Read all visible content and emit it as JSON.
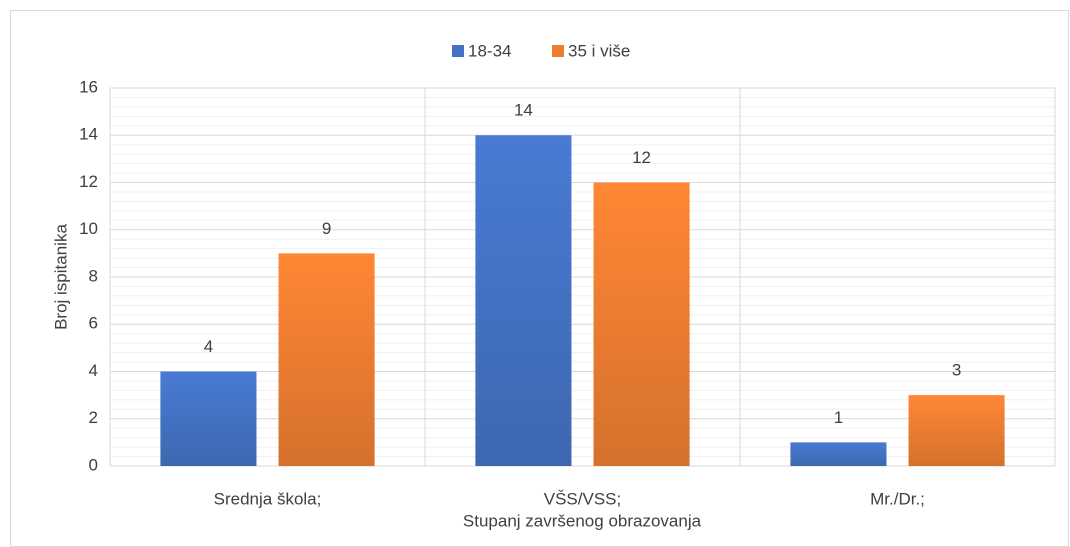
{
  "chart_data": {
    "type": "bar",
    "categories": [
      "Srednja škola;",
      "VŠS/VSS;",
      "Mr./Dr.;"
    ],
    "series": [
      {
        "name": "18-34",
        "color": "#4472c4",
        "values": [
          4,
          14,
          1
        ]
      },
      {
        "name": "35 i više",
        "color": "#ed7d31",
        "values": [
          9,
          12,
          3
        ]
      }
    ],
    "xlabel": "Stupanj završenog obrazovanja",
    "ylabel": "Broj ispitanika",
    "ylim": [
      0,
      16
    ],
    "yticks": [
      0,
      2,
      4,
      6,
      8,
      10,
      12,
      14,
      16
    ],
    "grid": true,
    "minor_grid": 5,
    "legend": "top"
  }
}
